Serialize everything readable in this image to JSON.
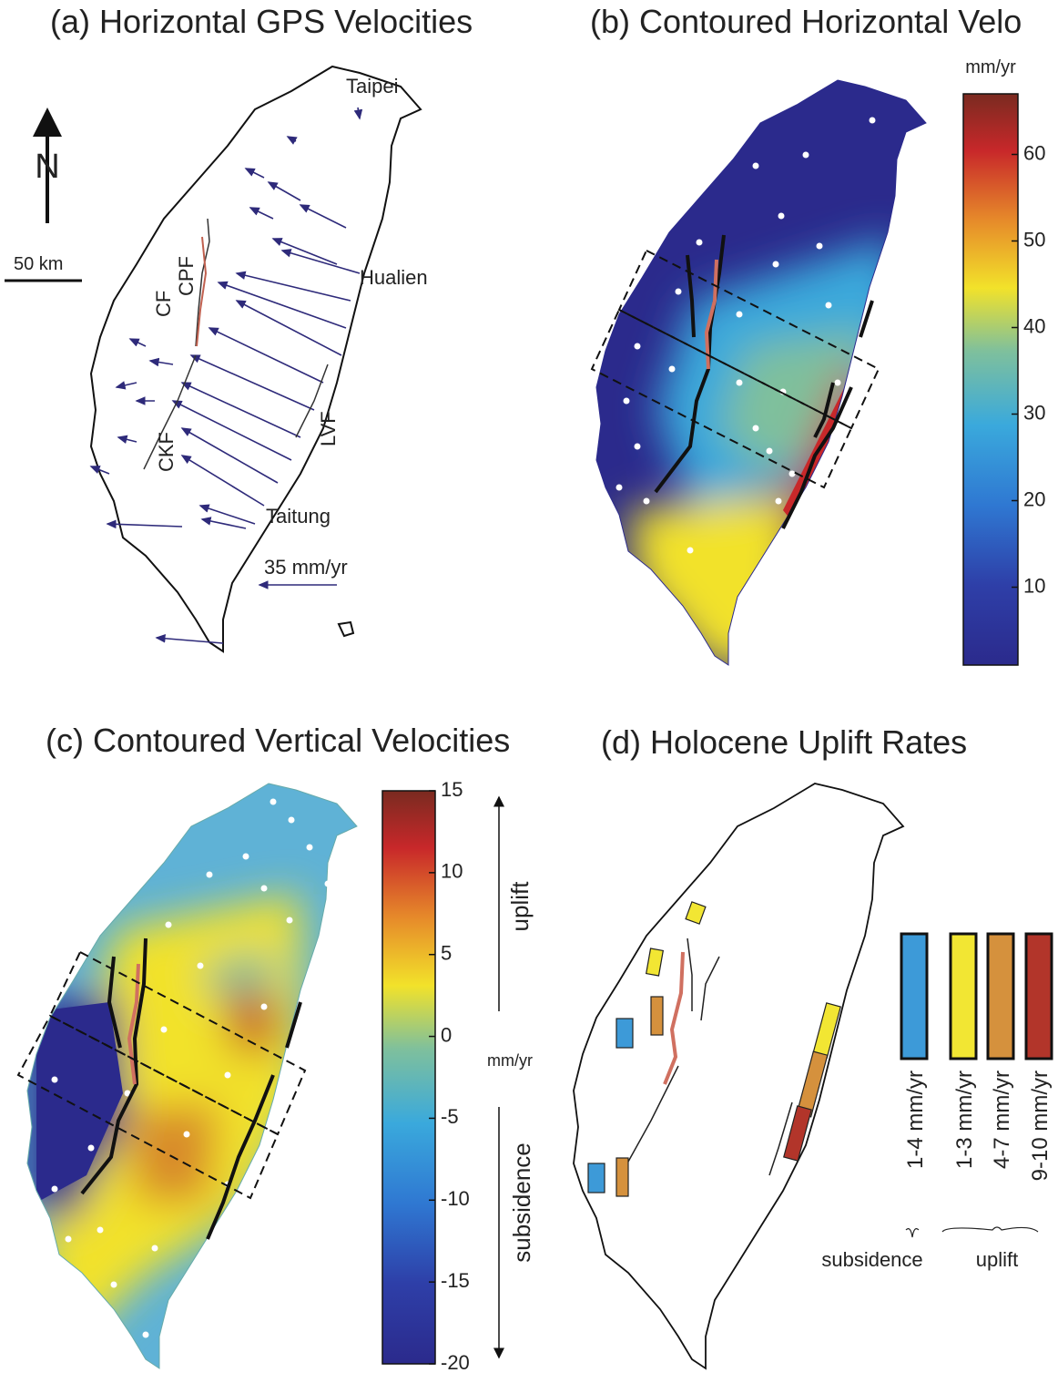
{
  "panels": [
    {
      "title": "(a) Horizontal GPS Velocities",
      "places": [
        "Taipei",
        "Hualien",
        "Taitung"
      ],
      "faults": [
        "CF",
        "CPF",
        "CKF",
        "LVF"
      ],
      "north": "N",
      "scale_bar": "50 km",
      "reference_arrow": "35 mm/yr"
    },
    {
      "title": "(b) Contoured Horizontal Velo",
      "colorbar": {
        "unit": "mm/yr",
        "lim": [
          1,
          67
        ],
        "ticks": [
          10,
          20,
          30,
          40,
          50,
          60
        ]
      }
    },
    {
      "title": "(c) Contoured Vertical Velocities",
      "colorbar": {
        "unit": "mm/yr",
        "lim": [
          -20,
          15
        ],
        "ticks": [
          15,
          10,
          5,
          0,
          -5,
          -10,
          -15,
          -20
        ]
      },
      "up_label": "uplift",
      "down_label": "subsidence"
    },
    {
      "title": "(d) Holocene Uplift Rates",
      "legend": [
        {
          "label": "1-4 mm/yr",
          "color": "#3d9ad8"
        },
        {
          "label": "1-3 mm/yr",
          "color": "#f2e633"
        },
        {
          "label": "4-7 mm/yr",
          "color": "#d5913d"
        },
        {
          "label": "9-10 mm/yr",
          "color": "#b2352a"
        }
      ],
      "groups": [
        "subsidence",
        "uplift"
      ]
    }
  ]
}
